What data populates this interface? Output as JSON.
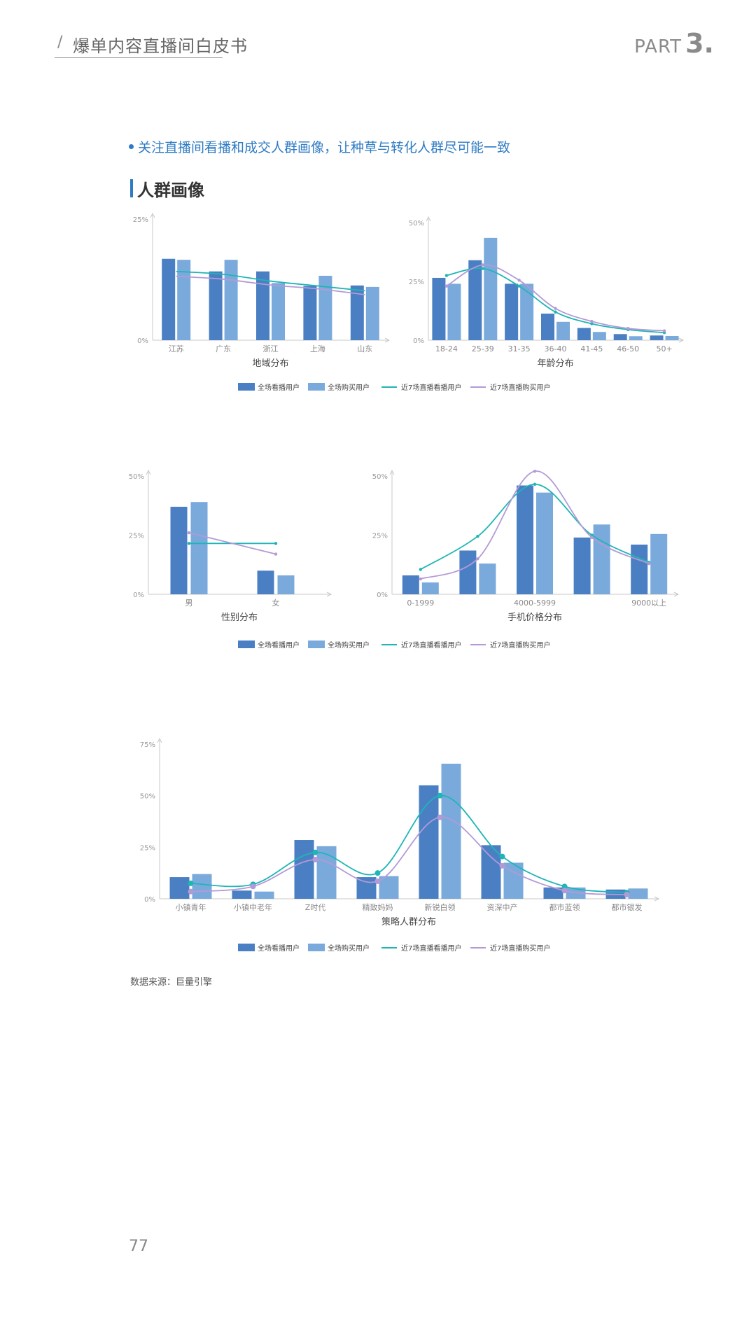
{
  "header": {
    "slash": "/",
    "title": "爆单内容直播间白皮书",
    "part_word": "PART",
    "part_num": "3."
  },
  "bullet_text": "关注直播间看播和成交人群画像，让种草与转化人群尽可能一致",
  "section_title": "人群画像",
  "source": "数据来源：巨量引擎",
  "page_number": "77",
  "colors": {
    "dark_bar": "#4a7fc4",
    "light_bar": "#7aaadc",
    "teal_line": "#1fb5b5",
    "purple_line": "#b39ad6",
    "accent": "#2e7bc4"
  },
  "legend": [
    "全场看播用户",
    "全场购买用户",
    "近7场直播看播用户",
    "近7场直播购买用户"
  ],
  "chart_data": [
    {
      "id": "region",
      "type": "bar",
      "xlabel": "地域分布",
      "yticks": [
        "0%",
        "25%"
      ],
      "ylim": [
        0,
        25
      ],
      "categories": [
        "江苏",
        "广东",
        "浙江",
        "上海",
        "山东"
      ],
      "series": [
        {
          "name": "全场看播用户",
          "type": "bar",
          "values": [
            16.8,
            14.2,
            14.2,
            11.2,
            11.3
          ]
        },
        {
          "name": "全场购买用户",
          "type": "bar",
          "values": [
            16.6,
            16.6,
            11.8,
            13.3,
            11.0
          ]
        },
        {
          "name": "近7场直播看播用户",
          "type": "line",
          "values": [
            14.2,
            13.6,
            12.2,
            11.2,
            10.2
          ]
        },
        {
          "name": "近7场直播购买用户",
          "type": "line",
          "values": [
            13.2,
            12.6,
            11.4,
            10.6,
            9.4
          ]
        }
      ]
    },
    {
      "id": "age",
      "type": "bar",
      "xlabel": "年龄分布",
      "yticks": [
        "0%",
        "25%",
        "50%"
      ],
      "ylim": [
        0,
        50
      ],
      "categories": [
        "18-24",
        "25-39",
        "31-35",
        "36-40",
        "41-45",
        "46-50",
        "50+"
      ],
      "series": [
        {
          "name": "全场看播用户",
          "type": "bar",
          "values": [
            26.5,
            34,
            24,
            11.3,
            5.2,
            2.6,
            2.0
          ]
        },
        {
          "name": "全场购买用户",
          "type": "bar",
          "values": [
            24,
            43.5,
            24,
            7.8,
            3.5,
            1.7,
            1.8
          ]
        },
        {
          "name": "近7场直播看播用户",
          "type": "line",
          "values": [
            27.5,
            30.5,
            23,
            12,
            7,
            4.5,
            3.2
          ]
        },
        {
          "name": "近7场直播购买用户",
          "type": "line",
          "values": [
            23,
            32,
            25.5,
            13.5,
            8,
            5,
            4
          ]
        }
      ]
    },
    {
      "id": "gender",
      "type": "bar",
      "xlabel": "性别分布",
      "yticks": [
        "0%",
        "25%",
        "50%"
      ],
      "ylim": [
        0,
        50
      ],
      "categories": [
        "男",
        "女"
      ],
      "series": [
        {
          "name": "全场看播用户",
          "type": "bar",
          "values": [
            37,
            10
          ]
        },
        {
          "name": "全场购买用户",
          "type": "bar",
          "values": [
            39,
            8
          ]
        },
        {
          "name": "近7场直播看播用户",
          "type": "line",
          "values": [
            21.5,
            21.5
          ]
        },
        {
          "name": "近7场直播购买用户",
          "type": "line",
          "values": [
            26,
            17
          ]
        }
      ]
    },
    {
      "id": "phone",
      "type": "bar",
      "xlabel": "手机价格分布",
      "yticks": [
        "0%",
        "25%",
        "50%"
      ],
      "ylim": [
        0,
        50
      ],
      "categories": [
        "0-1999",
        "",
        "4000-5999",
        "",
        "9000以上"
      ],
      "series": [
        {
          "name": "全场看播用户",
          "type": "bar",
          "values": [
            8,
            18.5,
            46,
            24,
            21
          ]
        },
        {
          "name": "全场购买用户",
          "type": "bar",
          "values": [
            5,
            13,
            43,
            29.5,
            25.5
          ]
        },
        {
          "name": "近7场直播看播用户",
          "type": "line",
          "values": [
            10.5,
            24.5,
            46.5,
            25,
            13.5
          ]
        },
        {
          "name": "近7场直播购买用户",
          "type": "line",
          "values": [
            6.5,
            15,
            52,
            24,
            13
          ]
        }
      ]
    },
    {
      "id": "strategy",
      "type": "bar",
      "xlabel": "策略人群分布",
      "yticks": [
        "0%",
        "25%",
        "50%",
        "75%"
      ],
      "ylim": [
        0,
        75
      ],
      "categories": [
        "小镇青年",
        "小镇中老年",
        "Z时代",
        "精致妈妈",
        "新锐白领",
        "资深中产",
        "都市蓝领",
        "都市银发"
      ],
      "series": [
        {
          "name": "全场看播用户",
          "type": "bar",
          "values": [
            10.5,
            4,
            28.5,
            10.5,
            55,
            26,
            5.5,
            4.5
          ]
        },
        {
          "name": "全场购买用户",
          "type": "bar",
          "values": [
            12,
            3.5,
            25.5,
            11,
            65.5,
            17.5,
            5.5,
            5
          ]
        },
        {
          "name": "近7场直播看播用户",
          "type": "line",
          "values": [
            7.5,
            7,
            22.5,
            12.5,
            50,
            20.5,
            6,
            3
          ]
        },
        {
          "name": "近7场直播购买用户",
          "type": "line",
          "values": [
            3.5,
            6,
            19,
            8.5,
            39.5,
            16,
            4,
            2
          ]
        }
      ]
    }
  ]
}
